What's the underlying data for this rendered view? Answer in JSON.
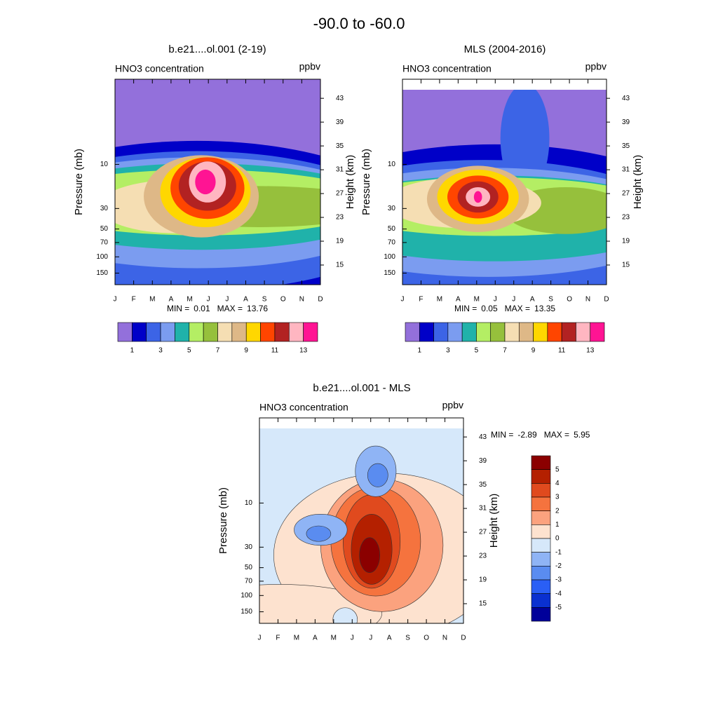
{
  "title": "-90.0 to -60.0",
  "chart_data": [
    {
      "type": "contour",
      "title": "b.e21....ol.001 (2-19)",
      "subtitle_left": "HNO3 concentration",
      "subtitle_right": "ppbv",
      "y_label": "Pressure (mb)",
      "y2_label": "Height (km)",
      "log_scale": true,
      "categories": [
        "J",
        "F",
        "M",
        "A",
        "M",
        "J",
        "J",
        "A",
        "S",
        "O",
        "N",
        "D"
      ],
      "ylim": [
        200,
        1.2
      ],
      "yticks": [
        10,
        30,
        50,
        70,
        100,
        150
      ],
      "y2lim": [
        11.7,
        46.2
      ],
      "y2ticks": [
        15,
        19,
        23,
        27,
        31,
        35,
        39,
        43
      ],
      "min_label": "MIN =",
      "min": 0.01,
      "max_label": "MAX =",
      "max": 13.76,
      "colorbar": {
        "colors": [
          "#9370db",
          "#0000c8",
          "#3c64e6",
          "#7b9cf0",
          "#20b2aa",
          "#b4ee64",
          "#96c03c",
          "#f5deb3",
          "#deb887",
          "#ffd700",
          "#ff4500",
          "#b22222",
          "#ffb6c1",
          "#ff1493"
        ],
        "labels": [
          1,
          3,
          5,
          7,
          9,
          11,
          13
        ]
      }
    },
    {
      "type": "contour",
      "title": "MLS (2004-2016)",
      "subtitle_left": "HNO3 concentration",
      "subtitle_right": "ppbv",
      "y_label": "Pressure (mb)",
      "y2_label": "Height (km)",
      "log_scale": true,
      "categories": [
        "J",
        "F",
        "M",
        "A",
        "M",
        "J",
        "J",
        "A",
        "S",
        "O",
        "N",
        "D"
      ],
      "ylim": [
        200,
        1.2
      ],
      "yticks": [
        10,
        30,
        50,
        70,
        100,
        150
      ],
      "y2lim": [
        11.7,
        46.2
      ],
      "y2ticks": [
        15,
        19,
        23,
        27,
        31,
        35,
        39,
        43
      ],
      "min_label": "MIN =",
      "min": 0.05,
      "max_label": "MAX =",
      "max": 13.35,
      "colorbar": {
        "colors": [
          "#9370db",
          "#0000c8",
          "#3c64e6",
          "#7b9cf0",
          "#20b2aa",
          "#b4ee64",
          "#96c03c",
          "#f5deb3",
          "#deb887",
          "#ffd700",
          "#ff4500",
          "#b22222",
          "#ffb6c1",
          "#ff1493"
        ],
        "labels": [
          1,
          3,
          5,
          7,
          9,
          11,
          13
        ]
      }
    },
    {
      "type": "contour",
      "title": "b.e21....ol.001 - MLS",
      "subtitle_left": "HNO3 concentration",
      "subtitle_right": "ppbv",
      "y_label": "Pressure (mb)",
      "y2_label": "Height (km)",
      "log_scale": true,
      "categories": [
        "J",
        "F",
        "M",
        "A",
        "M",
        "J",
        "J",
        "A",
        "S",
        "O",
        "N",
        "D"
      ],
      "ylim": [
        200,
        1.2
      ],
      "yticks": [
        10,
        30,
        50,
        70,
        100,
        150
      ],
      "y2lim": [
        11.7,
        46.2
      ],
      "y2ticks": [
        15,
        19,
        23,
        27,
        31,
        35,
        39,
        43
      ],
      "min_label": "MIN =",
      "min": -2.89,
      "max_label": "MAX =",
      "max": 5.95,
      "colorbar": {
        "colors": [
          "#8b0000",
          "#b42000",
          "#e04a1e",
          "#f5733e",
          "#fba27e",
          "#fde2cf",
          "#d6e8fa",
          "#8fb4f5",
          "#5a8cf0",
          "#2a5ff5",
          "#0a30d0",
          "#00009a"
        ],
        "labels": [
          5,
          4,
          3,
          2,
          1,
          0,
          -1,
          -2,
          -3,
          -4,
          -5
        ]
      }
    }
  ]
}
